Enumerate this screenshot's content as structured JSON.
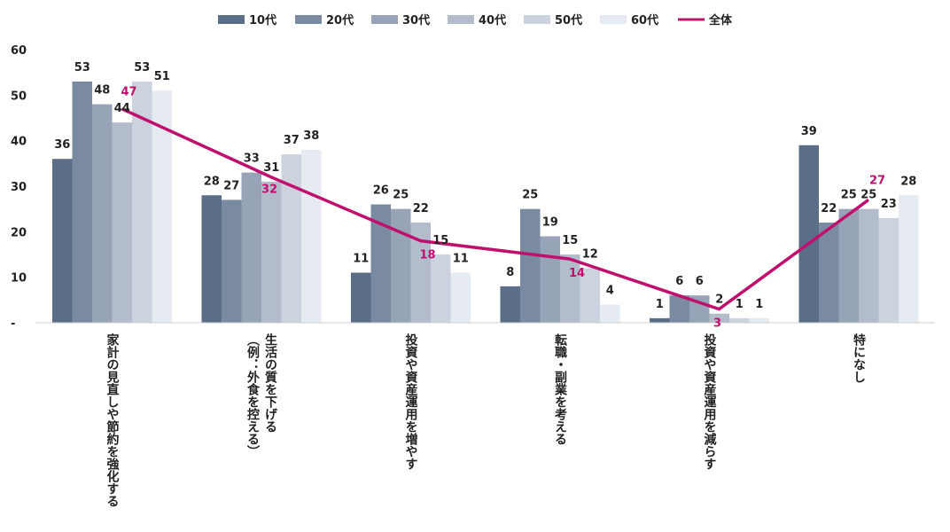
{
  "chart_data": {
    "type": "bar",
    "categories": [
      [
        "家計の見直しや節約を強化する"
      ],
      [
        "生活の質を下げる",
        "（例：外食を控える）"
      ],
      [
        "投資や資産運用を増やす"
      ],
      [
        "転職・副業を考える"
      ],
      [
        "投資や資産運用を減らす"
      ],
      [
        "特になし"
      ]
    ],
    "series": [
      {
        "name": "10代",
        "values": [
          36,
          28,
          11,
          8,
          1,
          39
        ],
        "color": "#5b6e87"
      },
      {
        "name": "20代",
        "values": [
          53,
          27,
          26,
          25,
          6,
          22
        ],
        "color": "#7a8aa1"
      },
      {
        "name": "30代",
        "values": [
          48,
          33,
          25,
          19,
          6,
          25
        ],
        "color": "#97a4b7"
      },
      {
        "name": "40代",
        "values": [
          44,
          31,
          22,
          15,
          2,
          25
        ],
        "color": "#b2bccb"
      },
      {
        "name": "50代",
        "values": [
          53,
          37,
          15,
          12,
          1,
          23
        ],
        "color": "#ccd3de"
      },
      {
        "name": "60代",
        "values": [
          51,
          38,
          11,
          4,
          1,
          28
        ],
        "color": "#e6eaf1"
      }
    ],
    "line": {
      "name": "全体",
      "values": [
        47,
        32,
        18,
        14,
        3,
        27
      ],
      "color": "#c0106e"
    },
    "yticks": [
      "-",
      "10",
      "20",
      "30",
      "40",
      "50",
      "60"
    ],
    "ylim": [
      0,
      60
    ],
    "legend_position": "top"
  }
}
